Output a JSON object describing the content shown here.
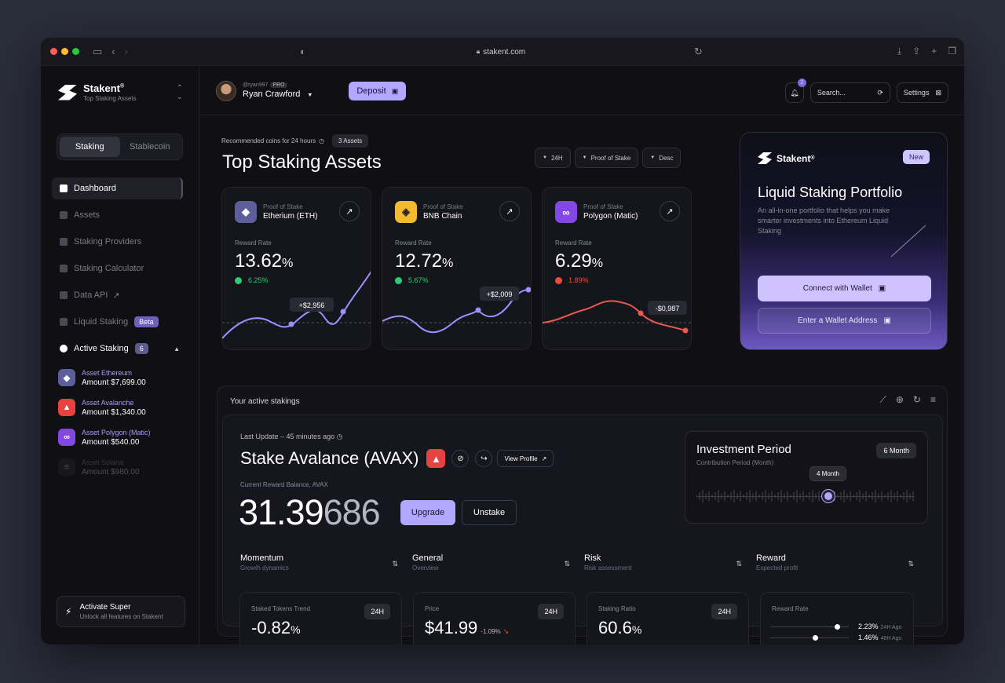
{
  "browser": {
    "url": "stakent.com"
  },
  "brand": {
    "name": "Stakent",
    "reg": "®",
    "subtitle": "Top Staking Assets"
  },
  "segment": {
    "options": [
      "Staking",
      "Stablecoin"
    ],
    "active": "Staking"
  },
  "sidebar": {
    "items": [
      {
        "label": "Dashboard",
        "active": true
      },
      {
        "label": "Assets"
      },
      {
        "label": "Staking Providers"
      },
      {
        "label": "Staking Calculator"
      },
      {
        "label": "Data API",
        "suffix": "↗"
      },
      {
        "label": "Liquid Staking",
        "badge": "Beta"
      },
      {
        "label": "Active Staking",
        "badge": "6"
      }
    ],
    "assets": [
      {
        "name": "Asset Ethereum",
        "amount": "Amount $7,699.00",
        "color": "#5c5f9c",
        "glyph": "◆"
      },
      {
        "name": "Asset Avalanche",
        "amount": "Amount $1,340.00",
        "color": "#e84142",
        "glyph": "▲"
      },
      {
        "name": "Asset Polygon (Matic)",
        "amount": "Amount $540.00",
        "color": "#8247e5",
        "glyph": "∞"
      },
      {
        "name": "Asset Solana",
        "amount": "Amount $980.00",
        "color": "#333",
        "glyph": "≡"
      }
    ],
    "activate": {
      "title": "Activate Super",
      "subtitle": "Unlock all features on Stakent"
    }
  },
  "header": {
    "handle": "@ryan997",
    "pro": "PRO",
    "name": "Ryan Crawford",
    "deposit": "Deposit",
    "notifications": "2",
    "search_placeholder": "Search...",
    "settings": "Settings"
  },
  "top": {
    "recommended": "Recommended coins for 24 hours",
    "assets_pill": "3 Assets",
    "title": "Top Staking Assets",
    "filters": [
      "24H",
      "Proof of Stake",
      "Desc"
    ],
    "cards": [
      {
        "sub": "Proof of Stake",
        "name": "Etherium (ETH)",
        "rr_label": "Reward Rate",
        "rate": "13.62",
        "unit": "%",
        "delta": "6.25%",
        "delta_color": "#2ecc71",
        "annot": "+$2,956",
        "coin_color": "#5c5f9c",
        "glyph": "◆"
      },
      {
        "sub": "Proof of Stake",
        "name": "BNB Chain",
        "rr_label": "Reward Rate",
        "rate": "12.72",
        "unit": "%",
        "delta": "5.67%",
        "delta_color": "#2ecc71",
        "annot": "+$2,009",
        "coin_color": "#f3ba2f",
        "glyph": "◈"
      },
      {
        "sub": "Proof of Stake",
        "name": "Polygon (Matic)",
        "rr_label": "Reward Rate",
        "rate": "6.29",
        "unit": "%",
        "delta": "1.89%",
        "delta_color": "#e74c3c",
        "annot": "-$0,987",
        "coin_color": "#8247e5",
        "glyph": "∞"
      }
    ]
  },
  "promo": {
    "badge": "New",
    "title": "Liquid Staking Portfolio",
    "description": "An all-in-one portfolio that helps you make smarter investments into Ethereum Liquid Staking",
    "connect": "Connect with Wallet",
    "enter": "Enter a Wallet Address"
  },
  "active": {
    "title": "Your active stakings",
    "last_update": "Last Update – 45 minutes ago",
    "stake_title": "Stake Avalance (AVAX)",
    "view_profile": "View Profile",
    "balance_label": "Current Reward Balance, AVAX",
    "balance_main": "31.39",
    "balance_dim": "686",
    "upgrade": "Upgrade",
    "unstake": "Unstake",
    "investment": {
      "title": "Investment Period",
      "subtitle": "Contribution Period (Month)",
      "badge": "6 Month",
      "tip": "4 Month",
      "level": 0.6
    },
    "tabs": [
      {
        "name": "Momentum",
        "sub": "Growth dynamics"
      },
      {
        "name": "General",
        "sub": "Overview"
      },
      {
        "name": "Risk",
        "sub": "Risk assessment"
      },
      {
        "name": "Reward",
        "sub": "Expected profit"
      }
    ],
    "stats": [
      {
        "label": "Staked Tokens Trend",
        "value": "-0.82",
        "unit": "%",
        "period": "24H"
      },
      {
        "label": "Price",
        "value": "$41.99",
        "change": "-1.09%",
        "arrow": "↘",
        "period": "24H"
      },
      {
        "label": "Staking Ratio",
        "value": "60.6",
        "unit": "%",
        "period": "24H"
      }
    ],
    "reward_rate": {
      "label": "Reward Rate",
      "rows": [
        {
          "value": "2.23%",
          "ago": "24H Ago",
          "level": 0.85
        },
        {
          "value": "1.46%",
          "ago": "48H Ago",
          "level": 0.57
        }
      ]
    }
  }
}
